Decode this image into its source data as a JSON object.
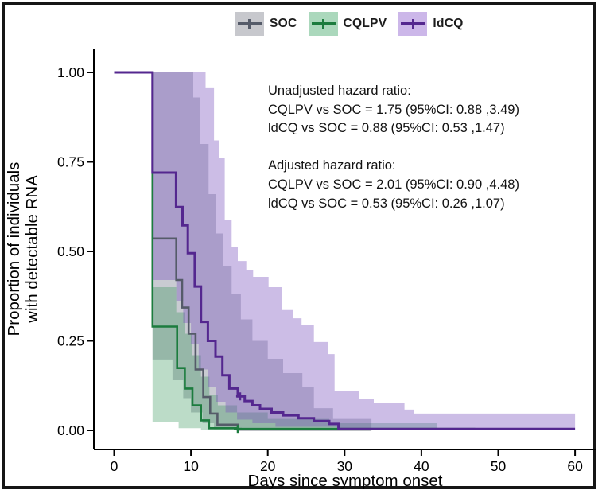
{
  "legend": {
    "items": [
      {
        "label": "SOC",
        "line_color": "#555b69",
        "key_bg": "#c7c8cd"
      },
      {
        "label": "CQLPV",
        "line_color": "#1c7c3e",
        "key_bg": "#abd8bc"
      },
      {
        "label": "ldCQ",
        "line_color": "#54278f",
        "key_bg": "#ccb7e9"
      }
    ]
  },
  "annotation": {
    "lines": [
      "Unadjusted hazard ratio:",
      "CQLPV vs SOC = 1.75 (95%CI: 0.88 ,3.49)",
      "ldCQ vs SOC = 0.88 (95%CI: 0.53 ,1.47)",
      "",
      "Adjusted hazard ratio:",
      "CQLPV vs SOC = 2.01 (95%CI: 0.90 ,4.48)",
      "ldCQ vs SOC = 0.53 (95%CI: 0.26 ,1.07)"
    ]
  },
  "chart_data": {
    "type": "line",
    "subtype": "kaplan-meier-step",
    "title": "",
    "xlabel": "Days since symptom onset",
    "ylabel_lines": [
      "Proportion of individuals",
      "with detectable RNA"
    ],
    "xlim": [
      0,
      63
    ],
    "ylim": [
      0,
      1
    ],
    "grid": false,
    "legend_position": "top",
    "xticks": [
      {
        "value": 0,
        "label": "0"
      },
      {
        "value": 10,
        "label": "10"
      },
      {
        "value": 20,
        "label": "20"
      },
      {
        "value": 30,
        "label": "30"
      },
      {
        "value": 40,
        "label": "40"
      },
      {
        "value": 50,
        "label": "50"
      },
      {
        "value": 60,
        "label": "60"
      }
    ],
    "yticks": [
      {
        "value": 0.0,
        "label": "0.00"
      },
      {
        "value": 0.25,
        "label": "0.25"
      },
      {
        "value": 0.5,
        "label": "0.50"
      },
      {
        "value": 0.75,
        "label": "0.75"
      },
      {
        "value": 1.0,
        "label": "1.00"
      }
    ],
    "series": [
      {
        "name": "SOC",
        "color": "#555b69",
        "line_width": 2.6,
        "band_color": "rgba(98,104,122,0.34)",
        "end_day": 33.5,
        "steps": [
          [
            0,
            1
          ],
          [
            5,
            0.536
          ],
          [
            8.1,
            0.42
          ],
          [
            8.85,
            0.343
          ],
          [
            9.7,
            0.27
          ],
          [
            10.6,
            0.17
          ],
          [
            11.6,
            0.093
          ],
          [
            12.5,
            0.047
          ],
          [
            13.45,
            0.016
          ],
          [
            16.1,
            0.002
          ]
        ],
        "band_upper": [
          [
            5,
            1
          ],
          [
            10.3,
            0.93
          ],
          [
            11.2,
            0.8
          ],
          [
            12.3,
            0.66
          ],
          [
            13.2,
            0.55
          ],
          [
            14.2,
            0.46
          ],
          [
            15.3,
            0.38
          ],
          [
            16.5,
            0.31
          ],
          [
            18,
            0.25
          ],
          [
            20,
            0.2
          ],
          [
            22,
            0.16
          ],
          [
            24.5,
            0.12
          ],
          [
            26,
            0.062
          ],
          [
            28.5,
            0.032
          ]
        ],
        "band_lower": [
          [
            5,
            0.198
          ],
          [
            7.6,
            0.14
          ],
          [
            9,
            0.09
          ],
          [
            10,
            0.05
          ],
          [
            11.5,
            0.02
          ],
          [
            13,
            0.003
          ]
        ],
        "censors": []
      },
      {
        "name": "CQLPV",
        "color": "#1c7c3e",
        "line_width": 2.6,
        "band_color": "rgba(34,139,74,0.30)",
        "end_day": 47,
        "steps": [
          [
            0,
            1
          ],
          [
            5,
            0.29
          ],
          [
            8.2,
            0.174
          ],
          [
            9.2,
            0.117
          ],
          [
            10.2,
            0.07
          ],
          [
            11.3,
            0.028
          ],
          [
            12.35,
            0.006
          ],
          [
            16.1,
            0.004
          ]
        ],
        "band_upper": [
          [
            5,
            0.4
          ],
          [
            8.1,
            0.33
          ],
          [
            9.2,
            0.27
          ],
          [
            10.2,
            0.21
          ],
          [
            11.3,
            0.15
          ],
          [
            12.4,
            0.1
          ],
          [
            13.5,
            0.07
          ],
          [
            16,
            0.05
          ],
          [
            20,
            0.032
          ],
          [
            28,
            0.02
          ]
        ],
        "band_lower": [
          [
            5,
            0.023
          ],
          [
            8.4,
            0.006
          ],
          [
            11.3,
            0.001
          ]
        ],
        "band_end_day": 42,
        "censors": [
          [
            16.1,
            0.004
          ]
        ]
      },
      {
        "name": "ldCQ",
        "color": "#54278f",
        "line_width": 3.0,
        "band_color": "rgba(122,81,189,0.38)",
        "end_day": 60,
        "steps": [
          [
            0,
            1
          ],
          [
            5,
            0.72
          ],
          [
            8.06,
            0.624
          ],
          [
            8.9,
            0.573
          ],
          [
            9.6,
            0.495
          ],
          [
            10.5,
            0.402
          ],
          [
            11.3,
            0.303
          ],
          [
            12.2,
            0.25
          ],
          [
            13.2,
            0.206
          ],
          [
            14.1,
            0.154
          ],
          [
            15,
            0.117
          ],
          [
            16.1,
            0.095
          ],
          [
            17,
            0.082
          ],
          [
            18,
            0.07
          ],
          [
            19,
            0.06
          ],
          [
            20.5,
            0.05
          ],
          [
            22,
            0.042
          ],
          [
            24,
            0.034
          ],
          [
            26,
            0.026
          ],
          [
            28,
            0.018
          ],
          [
            29.2,
            0.004
          ]
        ],
        "band_upper": [
          [
            5,
            1
          ],
          [
            11.9,
            0.958
          ],
          [
            13,
            0.81
          ],
          [
            13.65,
            0.762
          ],
          [
            14.4,
            0.587
          ],
          [
            15.3,
            0.513
          ],
          [
            16.1,
            0.473
          ],
          [
            17.2,
            0.447
          ],
          [
            18.1,
            0.429
          ],
          [
            20.1,
            0.4
          ],
          [
            21.8,
            0.336
          ],
          [
            23.3,
            0.313
          ],
          [
            24.4,
            0.295
          ],
          [
            26,
            0.247
          ],
          [
            27.8,
            0.213
          ],
          [
            28.7,
            0.11
          ],
          [
            31.9,
            0.088
          ],
          [
            33.8,
            0.077
          ],
          [
            37.8,
            0.058
          ],
          [
            39,
            0.047
          ]
        ],
        "band_lower": [
          [
            5,
            0.42
          ],
          [
            8.1,
            0.36
          ],
          [
            9,
            0.3
          ],
          [
            10,
            0.24
          ],
          [
            11,
            0.17
          ],
          [
            12.2,
            0.12
          ],
          [
            13.2,
            0.08
          ],
          [
            14.5,
            0.05
          ],
          [
            16,
            0.03
          ],
          [
            18,
            0.02
          ],
          [
            21,
            0.01
          ],
          [
            29,
            0.002
          ]
        ],
        "censors": [
          [
            16.4,
            0.095
          ]
        ]
      }
    ]
  }
}
